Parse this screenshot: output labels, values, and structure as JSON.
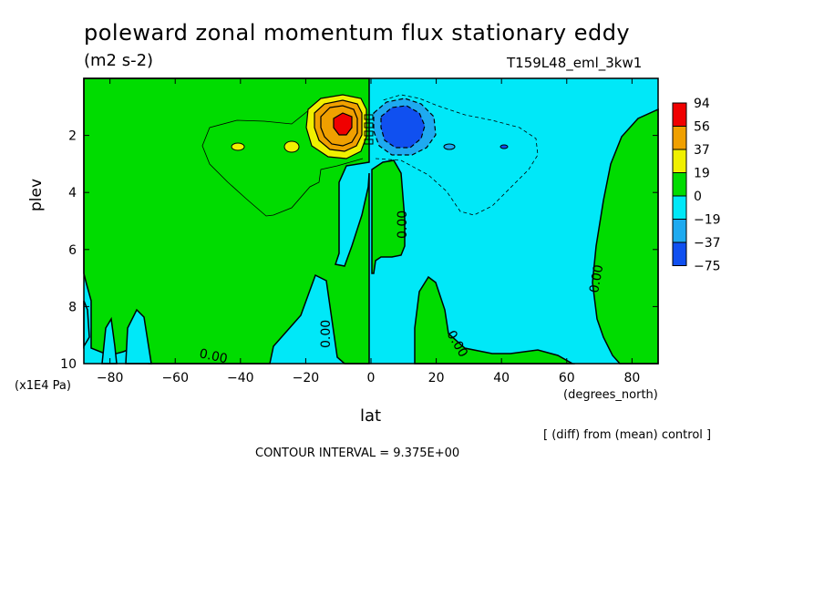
{
  "header": {
    "title": "poleward zonal momentum flux stationary eddy",
    "units": "(m2 s-2)",
    "run_id": "T159L48_eml_3kw1"
  },
  "footer": {
    "diff_note": "[ (diff) from (mean) control ]",
    "contour_interval": "CONTOUR INTERVAL = 9.375E+00"
  },
  "chart_data": {
    "type": "heatmap",
    "title": "poleward zonal momentum flux stationary eddy",
    "subtitle": "(m2 s-2)",
    "xlabel": "lat",
    "x_units": "(degrees_north)",
    "ylabel": "plev",
    "y_units": "(x1E4 Pa)",
    "xlim": [
      -88,
      88
    ],
    "ylim": [
      10,
      0
    ],
    "x_ticks": [
      -80,
      -60,
      -40,
      -20,
      0,
      20,
      40,
      60,
      80
    ],
    "y_ticks": [
      2,
      4,
      6,
      8,
      10
    ],
    "colorbar": {
      "labels": [
        "94",
        "56",
        "37",
        "19",
        "0",
        "−19",
        "−37",
        "−75"
      ],
      "colors": [
        "#f00000",
        "#f0a000",
        "#f0f000",
        "#00dc00",
        "#00e8f8",
        "#1eaaf0",
        "#1050f0"
      ]
    },
    "contour_labels": [
      "0.00",
      "0.00",
      "0.00",
      "0.00",
      "0.00",
      "0.00"
    ],
    "features": [
      {
        "name": "positive maximum",
        "lat": -8,
        "plev": 1.6,
        "value_range": "56 to 94"
      },
      {
        "name": "negative minimum",
        "lat": 8,
        "plev": 1.8,
        "value_range": "-75 to -37"
      }
    ],
    "grid": false
  }
}
